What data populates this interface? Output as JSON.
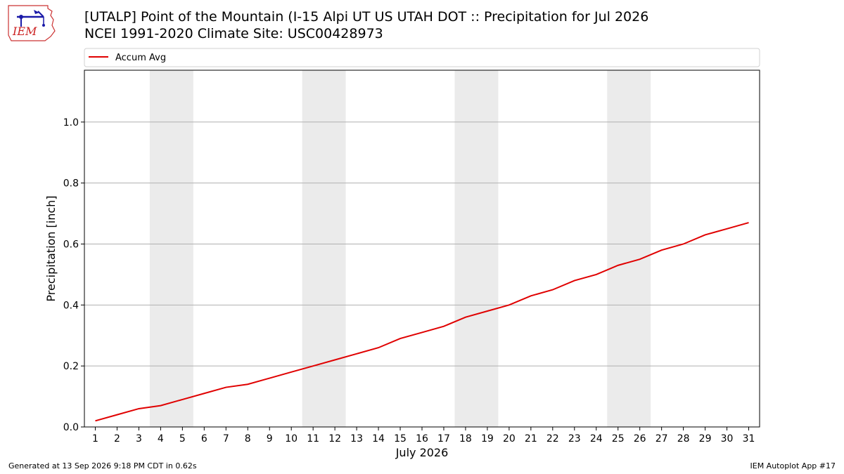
{
  "logo": {
    "text": "IEM"
  },
  "title": {
    "line1": "[UTALP] Point of the Mountain (I-15 Alpi UT US UTAH DOT :: Precipitation for Jul 2026",
    "line2": "NCEI 1991-2020 Climate Site: USC00428973"
  },
  "footer": {
    "generated": "Generated at 13 Sep 2026 9:18 PM CDT in 0.62s",
    "app": "IEM Autoplot App #17"
  },
  "colors": {
    "line": "#e00000",
    "weekend_band": "#ebebeb",
    "grid": "#b0b0b0",
    "logo": "#1a1aa8",
    "logo_text": "#cc2222"
  },
  "chart_data": {
    "type": "line",
    "xlabel": "July 2026",
    "ylabel": "Precipitation [inch]",
    "x": [
      1,
      2,
      3,
      4,
      5,
      6,
      7,
      8,
      9,
      10,
      11,
      12,
      13,
      14,
      15,
      16,
      17,
      18,
      19,
      20,
      21,
      22,
      23,
      24,
      25,
      26,
      27,
      28,
      29,
      30,
      31
    ],
    "series": [
      {
        "name": "Accum Avg",
        "values": [
          0.02,
          0.04,
          0.06,
          0.07,
          0.09,
          0.11,
          0.13,
          0.14,
          0.16,
          0.18,
          0.2,
          0.22,
          0.24,
          0.26,
          0.29,
          0.31,
          0.33,
          0.36,
          0.38,
          0.4,
          0.43,
          0.45,
          0.48,
          0.5,
          0.53,
          0.55,
          0.58,
          0.6,
          0.63,
          0.65,
          0.67
        ]
      }
    ],
    "yticks": [
      "0.0",
      "0.2",
      "0.4",
      "0.6",
      "0.8",
      "1.0"
    ],
    "xlim": [
      0.5,
      31.5
    ],
    "ylim": [
      0,
      1.17
    ],
    "weekend_bands": [
      [
        3.5,
        5.5
      ],
      [
        10.5,
        12.5
      ],
      [
        17.5,
        19.5
      ],
      [
        24.5,
        26.5
      ]
    ],
    "grid": "horizontal",
    "legend": "top-left"
  }
}
